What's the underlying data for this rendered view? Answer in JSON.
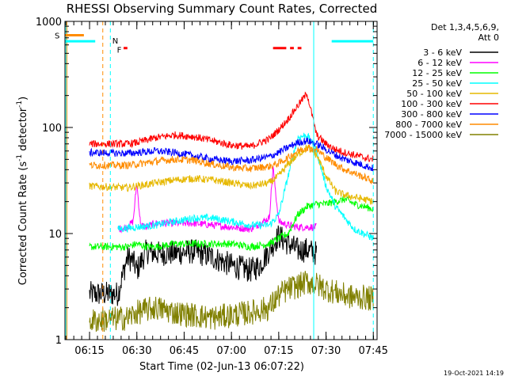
{
  "chart_data": {
    "type": "line",
    "title": "RHESSI Observing Summary Count Rates, Corrected",
    "ylabel_main": "Corrected Count Rate (s",
    "ylabel_sup1": "-1",
    "ylabel_mid": " detector",
    "ylabel_sup2": "-1",
    "ylabel_end": ")",
    "xlabel": "Start Time (02-Jun-13 06:07:22)",
    "timestamp": "19-Oct-2021 14:19",
    "yscale": "log",
    "ylim": [
      1,
      1000
    ],
    "xlim": [
      6.12,
      7.77
    ],
    "x_tick_values": [
      6.25,
      6.5,
      6.75,
      7.0,
      7.25,
      7.5,
      7.75
    ],
    "x_tick_labels": [
      "06:15",
      "06:30",
      "06:45",
      "07:00",
      "07:15",
      "07:30",
      "07:45"
    ],
    "y_tick_values": [
      1,
      10,
      100,
      1000
    ],
    "y_tick_labels": [
      "1",
      "10",
      "100",
      "1000"
    ],
    "legend_header": [
      "Det 1,3,4,5,6,9,",
      "Att 0"
    ],
    "legend_position": "right",
    "series": [
      {
        "name": "3 - 6 keV",
        "color": "#000000",
        "x": [
          6.25,
          6.4,
          6.45,
          6.48,
          6.5,
          6.55,
          6.6,
          6.7,
          6.8,
          6.9,
          7.0,
          7.1,
          7.15,
          7.2,
          7.25,
          7.3,
          7.35,
          7.4,
          7.45
        ],
        "y": [
          2.7,
          2.7,
          6,
          5.5,
          4.5,
          6.8,
          6.5,
          6.5,
          6.8,
          6,
          5,
          4.5,
          5,
          7,
          9.5,
          8,
          7,
          7,
          6.5
        ]
      },
      {
        "name": "6 - 12 keV",
        "color": "#ff00ff",
        "x": [
          6.4,
          6.45,
          6.48,
          6.5,
          6.52,
          6.55,
          6.6,
          6.7,
          6.8,
          6.9,
          7.0,
          7.1,
          7.2,
          7.22,
          7.25,
          7.3,
          7.35,
          7.4,
          7.45
        ],
        "y": [
          11,
          11.5,
          13,
          30,
          12,
          11.5,
          12.5,
          12.5,
          12.5,
          12,
          11.5,
          11,
          14,
          42,
          13,
          12,
          11.5,
          11.5,
          11.5
        ]
      },
      {
        "name": "12 - 25 keV",
        "color": "#00ff00",
        "x": [
          6.25,
          6.45,
          6.5,
          6.55,
          6.6,
          6.7,
          6.8,
          6.9,
          7.0,
          7.1,
          7.2,
          7.25,
          7.3,
          7.35,
          7.4,
          7.45,
          7.5,
          7.55,
          7.6,
          7.65,
          7.7,
          7.75
        ],
        "y": [
          7.5,
          7.5,
          8,
          7.5,
          7.5,
          8,
          8,
          8,
          8,
          7.5,
          8,
          9,
          10,
          15,
          18,
          19,
          19,
          20,
          21,
          19,
          18,
          17
        ]
      },
      {
        "name": "25 - 50 keV",
        "color": "#00ffff",
        "x": [
          6.4,
          6.5,
          6.6,
          6.7,
          6.8,
          6.9,
          7.0,
          7.1,
          7.2,
          7.25,
          7.3,
          7.35,
          7.4,
          7.45,
          7.5,
          7.55,
          7.6,
          7.65,
          7.7,
          7.75
        ],
        "y": [
          11,
          11.5,
          12,
          13,
          14,
          14,
          13,
          12,
          12,
          15,
          35,
          80,
          85,
          60,
          28,
          18,
          14,
          11,
          10,
          9
        ]
      },
      {
        "name": "50 - 100 keV",
        "color": "#e6b800",
        "x": [
          6.25,
          6.45,
          6.5,
          6.6,
          6.7,
          6.8,
          6.9,
          7.0,
          7.1,
          7.2,
          7.25,
          7.3,
          7.35,
          7.4,
          7.45,
          7.5,
          7.55,
          7.6,
          7.65,
          7.7,
          7.75
        ],
        "y": [
          28,
          27,
          28,
          30,
          32,
          33,
          32,
          30,
          28,
          30,
          35,
          45,
          55,
          65,
          55,
          35,
          25,
          23,
          22,
          21,
          20
        ]
      },
      {
        "name": "100 - 300 keV",
        "color": "#ff0000",
        "x": [
          6.25,
          6.45,
          6.5,
          6.6,
          6.7,
          6.8,
          6.9,
          7.0,
          7.1,
          7.2,
          7.25,
          7.3,
          7.35,
          7.4,
          7.45,
          7.5,
          7.55,
          7.6,
          7.65,
          7.7,
          7.75
        ],
        "y": [
          70,
          70,
          72,
          80,
          85,
          82,
          75,
          68,
          66,
          78,
          95,
          120,
          160,
          210,
          85,
          70,
          62,
          58,
          55,
          52,
          50
        ]
      },
      {
        "name": "300 - 800 keV",
        "color": "#0000ff",
        "x": [
          6.25,
          6.45,
          6.5,
          6.6,
          6.7,
          6.8,
          6.9,
          7.0,
          7.1,
          7.2,
          7.25,
          7.3,
          7.35,
          7.4,
          7.45,
          7.5,
          7.55,
          7.6,
          7.65,
          7.7,
          7.75
        ],
        "y": [
          58,
          57,
          58,
          60,
          58,
          54,
          50,
          48,
          49,
          53,
          58,
          65,
          72,
          75,
          70,
          62,
          55,
          50,
          47,
          44,
          41
        ]
      },
      {
        "name": "800 - 7000 keV",
        "color": "#ff8c00",
        "x": [
          6.25,
          6.45,
          6.5,
          6.6,
          6.7,
          6.8,
          6.9,
          7.0,
          7.1,
          7.2,
          7.25,
          7.3,
          7.35,
          7.4,
          7.45,
          7.5,
          7.55,
          7.6,
          7.65,
          7.7,
          7.75
        ],
        "y": [
          44,
          44,
          45,
          48,
          50,
          49,
          45,
          42,
          41,
          43,
          46,
          52,
          60,
          65,
          62,
          52,
          45,
          40,
          37,
          34,
          31
        ]
      },
      {
        "name": "7000 - 15000 keV",
        "color": "#808000",
        "x": [
          6.25,
          6.45,
          6.5,
          6.6,
          6.7,
          6.8,
          6.9,
          7.0,
          7.1,
          7.2,
          7.25,
          7.3,
          7.35,
          7.4,
          7.45,
          7.5,
          7.55,
          7.6,
          7.65,
          7.7,
          7.75
        ],
        "y": [
          1.5,
          1.6,
          1.8,
          2.0,
          1.8,
          1.7,
          1.6,
          1.7,
          1.8,
          2.0,
          2.6,
          3.0,
          3.2,
          3.5,
          3.3,
          3.0,
          2.8,
          2.6,
          2.5,
          2.5,
          2.4
        ]
      }
    ],
    "flag_labels": {
      "saa": "S",
      "night": "N",
      "flare": "F"
    },
    "saa_bar": {
      "color": "#ff8c00",
      "x": [
        6.12,
        6.22
      ],
      "y": 740
    },
    "night_bars": {
      "color": "#00ffff",
      "x": [
        [
          6.12,
          6.28
        ],
        [
          7.53,
          7.75
        ]
      ],
      "y": 650
    },
    "flare_bars": {
      "color": "#ff0000",
      "x": [
        [
          6.43,
          6.45
        ],
        [
          7.22,
          7.29
        ],
        [
          7.31,
          7.33
        ],
        [
          7.35,
          7.37
        ]
      ],
      "y": 560
    },
    "vlines": [
      {
        "x": 6.125,
        "color": "#00ffff"
      },
      {
        "x": 6.13,
        "color": "#ff8c00"
      },
      {
        "x": 6.32,
        "color": "#ff8c00",
        "dash": true
      },
      {
        "x": 6.36,
        "color": "#00ffff",
        "dash": true
      },
      {
        "x": 7.435,
        "color": "#00ffff"
      },
      {
        "x": 7.75,
        "color": "#00ffff",
        "dash": true
      }
    ]
  }
}
